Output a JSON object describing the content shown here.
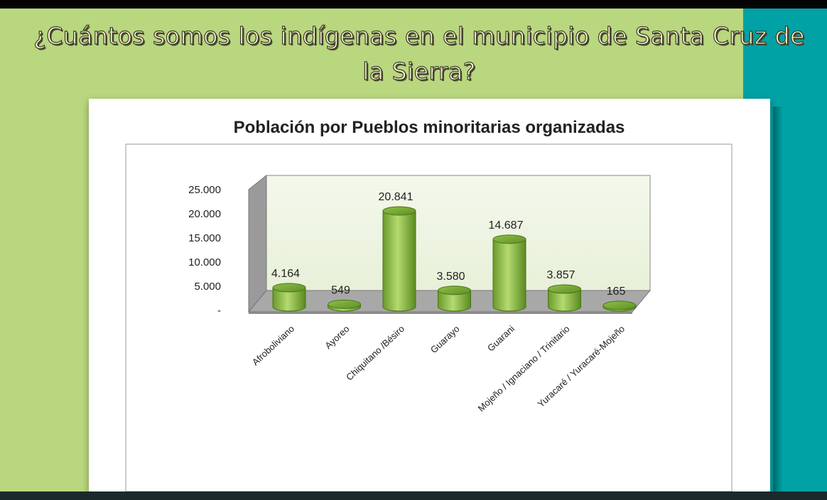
{
  "slide": {
    "title": "¿Cuántos somos los indígenas en el municipio de Santa Cruz de la Sierra?"
  },
  "colors": {
    "slide_green": "#b9d77f",
    "slide_teal": "#00a2a6",
    "bar_light": "#a8d060",
    "bar_dark": "#5f8f22",
    "floor": "#a6a6a6",
    "back_wall": "#eef5e2"
  },
  "chart_data": {
    "type": "bar",
    "title": "Población por Pueblos minoritarias organizadas",
    "categories": [
      "Afroboliviano",
      "Ayoreo",
      "Chiquitano /Bésiro",
      "Guarayo",
      "Guarani",
      "Mojeño / Ignaciano / Trinitario",
      "Yuracaré / Yuracaré-Mojeño"
    ],
    "values": [
      4164,
      549,
      20841,
      3580,
      14687,
      3857,
      165
    ],
    "data_labels": [
      "4.164",
      "549",
      "20.841",
      "3.580",
      "14.687",
      "3.857",
      "165"
    ],
    "y_ticks": [
      "-",
      "5.000",
      "10.000",
      "15.000",
      "20.000",
      "25.000"
    ],
    "ylim": [
      0,
      25000
    ],
    "grid": false,
    "style": "3d-cylinder"
  }
}
